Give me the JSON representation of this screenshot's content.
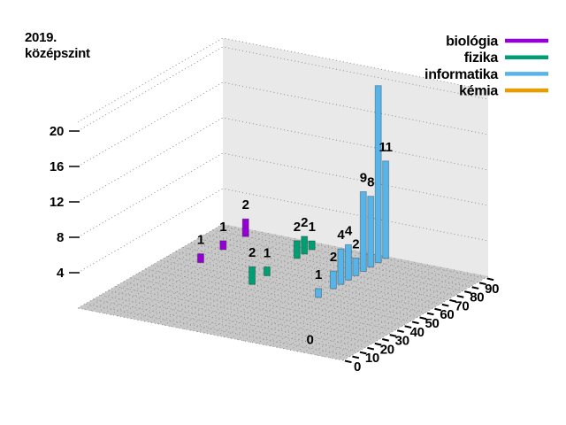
{
  "title": {
    "line1": "2019.",
    "line2": "középszint"
  },
  "colors": {
    "background": "#ffffff",
    "floor": "#c8c8c8",
    "wall": "#e9e9e9",
    "grid_dots": "#909090",
    "text": "#000000"
  },
  "chart_data": {
    "type": "bar",
    "subtype": "3d-histogram",
    "title": "2019. középszint",
    "x_axis": {
      "ticks": [
        0,
        10,
        20,
        30,
        40,
        50,
        60,
        70,
        80,
        90
      ],
      "minor_tick_step": 5,
      "range": [
        0,
        97
      ]
    },
    "z_axis": {
      "ticks": [
        4,
        8,
        12,
        16,
        20
      ],
      "range": [
        0,
        21
      ]
    },
    "legend_position": "top-right",
    "series": [
      {
        "name": "biológia",
        "color": "#9400d3",
        "points": [
          {
            "x": 60,
            "v": 1
          },
          {
            "x": 75,
            "v": 1
          },
          {
            "x": 90,
            "v": 2
          }
        ]
      },
      {
        "name": "fizika",
        "color": "#009e73",
        "points": [
          {
            "x": 50,
            "v": 2
          },
          {
            "x": 60,
            "v": 1
          },
          {
            "x": 80,
            "v": 2
          },
          {
            "x": 85,
            "v": 2
          },
          {
            "x": 90,
            "v": 1
          }
        ]
      },
      {
        "name": "informatika",
        "color": "#56b4e9",
        "points": [
          {
            "x": 50,
            "v": 1
          },
          {
            "x": 60,
            "v": 2
          },
          {
            "x": 65,
            "v": 4
          },
          {
            "x": 70,
            "v": 4
          },
          {
            "x": 75,
            "v": 2
          },
          {
            "x": 80,
            "v": 9
          },
          {
            "x": 85,
            "v": 8
          },
          {
            "x": 90,
            "v": 20,
            "label_visible": false
          },
          {
            "x": 95,
            "v": 11
          }
        ]
      },
      {
        "name": "kémia",
        "color": "#e69f00",
        "points": [
          {
            "x": 0,
            "v": 0
          }
        ]
      }
    ]
  }
}
